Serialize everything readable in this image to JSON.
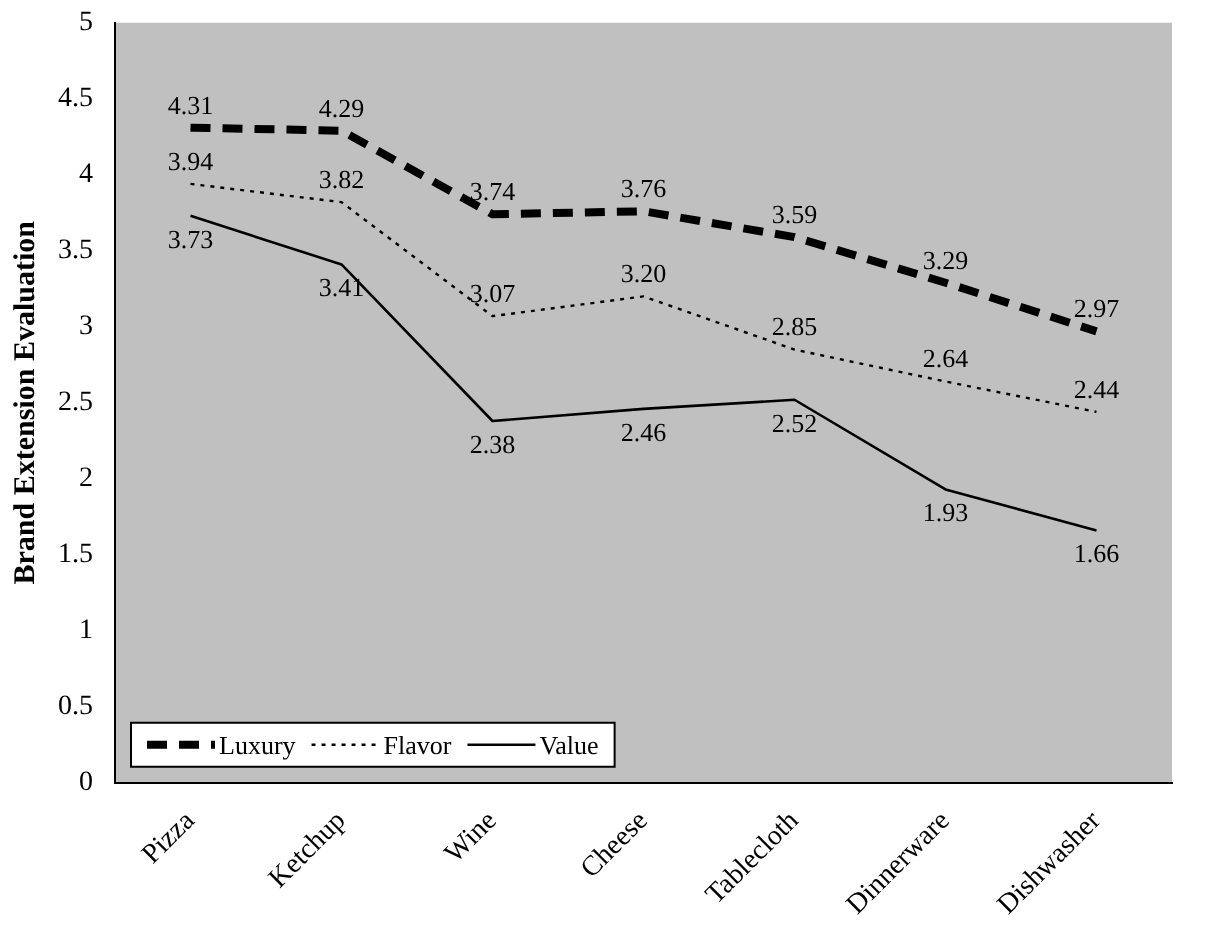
{
  "chart_data": {
    "type": "line",
    "ylabel": "Brand Extension Evaluation",
    "categories": [
      "Pizza",
      "Ketchup",
      "Wine",
      "Cheese",
      "Tablecloth",
      "Dinnerware",
      "Dishwasher"
    ],
    "series": [
      {
        "name": "Luxury",
        "color": "#000000",
        "line_style": "dashed",
        "values": [
          4.31,
          4.29,
          3.74,
          3.76,
          3.59,
          3.29,
          2.97
        ],
        "value_labels": [
          "4.31",
          "4.29",
          "3.74",
          "3.76",
          "3.59",
          "3.29",
          "2.97"
        ]
      },
      {
        "name": "Flavor",
        "color": "#000000",
        "line_style": "dotted",
        "values": [
          3.94,
          3.82,
          3.07,
          3.2,
          2.85,
          2.64,
          2.44
        ],
        "value_labels": [
          "3.94",
          "3.82",
          "3.07",
          "3.20",
          "2.85",
          "2.64",
          "2.44"
        ]
      },
      {
        "name": "Value",
        "color": "#000000",
        "line_style": "solid",
        "values": [
          3.73,
          3.41,
          2.38,
          2.46,
          2.52,
          1.93,
          1.66
        ],
        "value_labels": [
          "3.73",
          "3.41",
          "2.38",
          "2.46",
          "2.52",
          "1.93",
          "1.66"
        ]
      }
    ],
    "ylim": [
      0,
      5
    ],
    "yticks": [
      0,
      0.5,
      1,
      1.5,
      2,
      2.5,
      3,
      3.5,
      4,
      4.5,
      5
    ],
    "grid": false,
    "legend": "bottom left",
    "marker": "none"
  }
}
